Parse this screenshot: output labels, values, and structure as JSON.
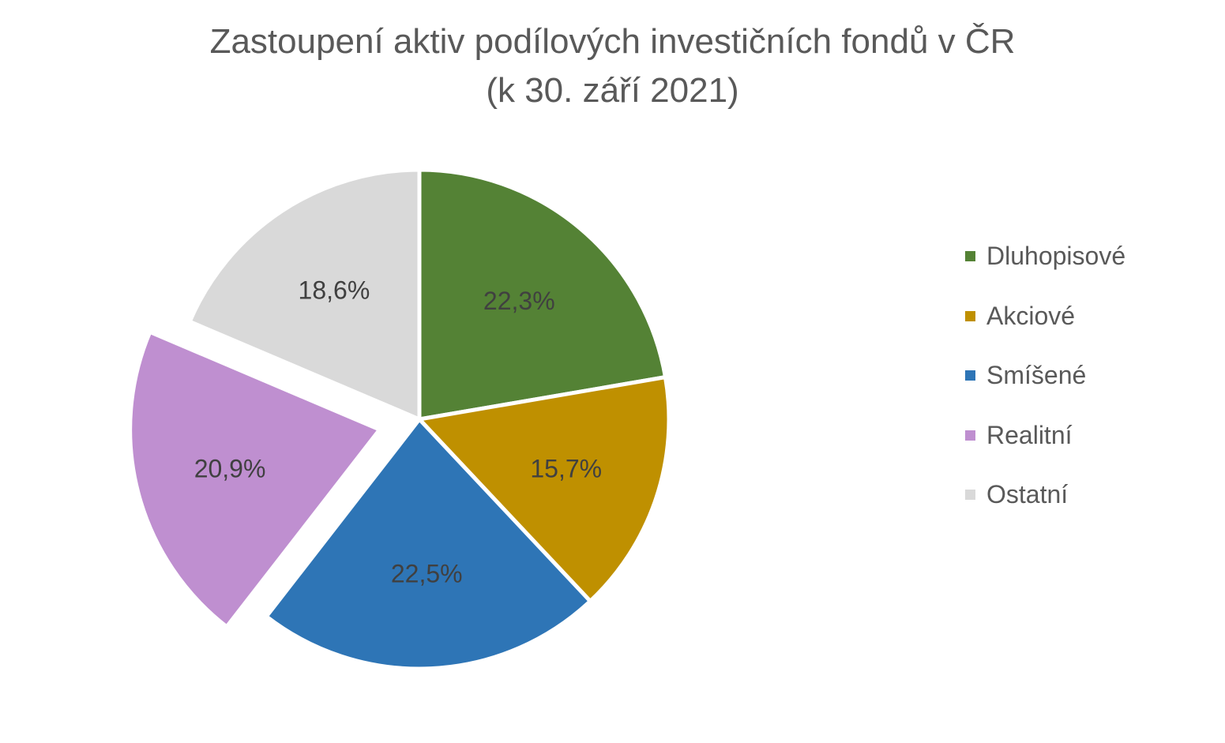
{
  "chart_data": {
    "type": "pie",
    "title": "Zastoupení aktiv podílových investičních fondů v ČR",
    "subtitle": "(k 30. září 2021)",
    "legend_position": "right",
    "start_angle": "12 o'clock, clockwise",
    "slices": [
      {
        "name": "Dluhopisové",
        "value": 22.3,
        "label": "22,3%",
        "color": "#548235",
        "exploded": false
      },
      {
        "name": "Akciové",
        "value": 15.7,
        "label": "15,7%",
        "color": "#BF9000",
        "exploded": false
      },
      {
        "name": "Smíšené",
        "value": 22.5,
        "label": "22,5%",
        "color": "#2E75B6",
        "exploded": false
      },
      {
        "name": "Realitní",
        "value": 20.9,
        "label": "20,9%",
        "color": "#BF8FD0",
        "exploded": true
      },
      {
        "name": "Ostatní",
        "value": 18.6,
        "label": "18,6%",
        "color": "#D9D9D9",
        "exploded": false
      }
    ]
  }
}
